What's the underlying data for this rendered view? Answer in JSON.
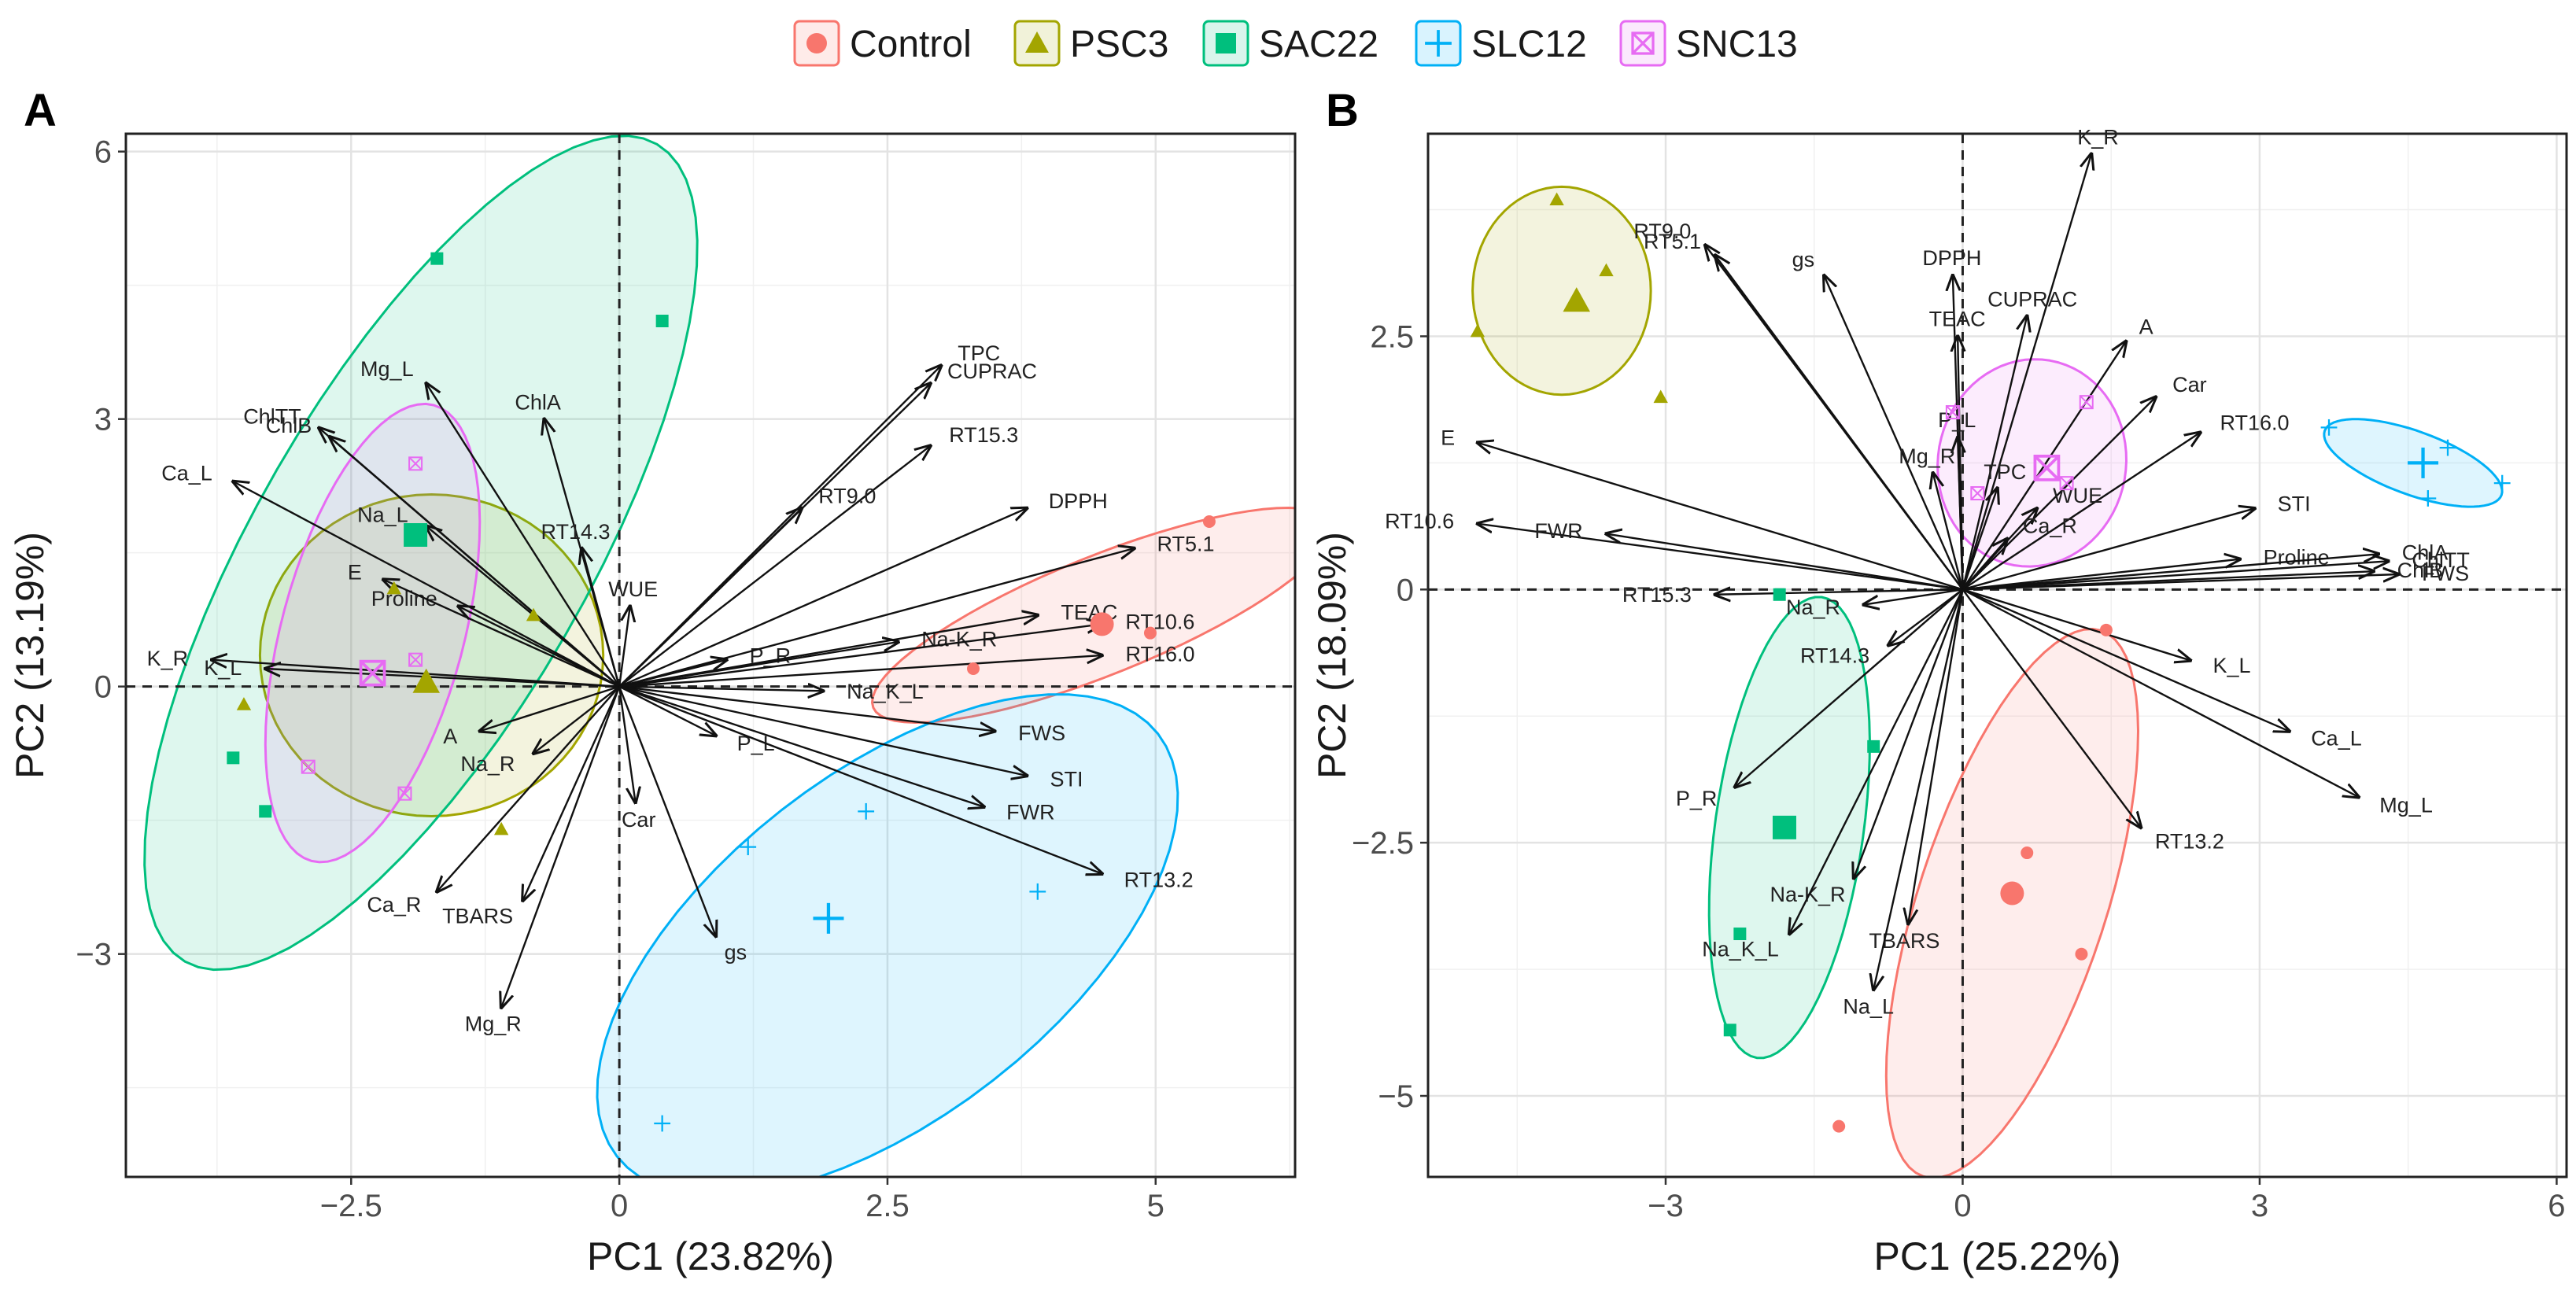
{
  "legend": {
    "items": [
      {
        "name": "Control",
        "color": "#F8766D",
        "marker": "circle"
      },
      {
        "name": "PSC3",
        "color": "#A3A500",
        "marker": "triangle"
      },
      {
        "name": "SAC22",
        "color": "#00BF7D",
        "marker": "square"
      },
      {
        "name": "SLC12",
        "color": "#00B0F6",
        "marker": "plus"
      },
      {
        "name": "SNC13",
        "color": "#E76BF3",
        "marker": "boxx"
      }
    ]
  },
  "chart_data": [
    {
      "type": "scatter",
      "panel": "A",
      "xlabel": "PC1 (23.82%)",
      "ylabel": "PC2 (13.19%)",
      "xlim": [
        -4.6,
        6.3
      ],
      "ylim": [
        -5.5,
        6.2
      ],
      "xticks": [
        -2.5,
        0,
        2.5,
        5
      ],
      "xtick_labels": [
        "−2.5",
        "0",
        "2.5",
        "5"
      ],
      "yticks": [
        -3,
        0,
        3,
        6
      ],
      "ytick_labels": [
        "−3",
        "0",
        "3",
        "6"
      ],
      "groups": [
        {
          "name": "Control",
          "centroid": [
            4.5,
            0.7
          ],
          "points": [
            [
              5.5,
              1.85
            ],
            [
              4.95,
              0.6
            ],
            [
              3.3,
              0.2
            ],
            [
              4.5,
              0.65
            ]
          ],
          "ellipse": {
            "center": [
              4.5,
              0.8
            ],
            "rx": 2.3,
            "ry": 0.55,
            "angle": 22
          }
        },
        {
          "name": "PSC3",
          "centroid": [
            -1.8,
            0.05
          ],
          "points": [
            [
              -2.1,
              1.1
            ],
            [
              -0.8,
              0.8
            ],
            [
              -3.5,
              -0.2
            ],
            [
              -1.1,
              -1.6
            ],
            [
              -1.8,
              0.05
            ]
          ],
          "ellipse": {
            "center": [
              -1.75,
              0.35
            ],
            "rx": 1.6,
            "ry": 1.5,
            "angle": 0
          }
        },
        {
          "name": "SAC22",
          "centroid": [
            -1.9,
            1.7
          ],
          "points": [
            [
              -1.7,
              4.8
            ],
            [
              0.4,
              4.1
            ],
            [
              -3.6,
              -0.8
            ],
            [
              -3.3,
              -1.4
            ],
            [
              -1.9,
              1.7
            ]
          ],
          "ellipse": {
            "center": [
              -1.85,
              1.5
            ],
            "rx": 4.4,
            "ry": 1.55,
            "angle": 60
          }
        },
        {
          "name": "SLC12",
          "centroid": [
            1.95,
            -2.6
          ],
          "points": [
            [
              1.2,
              -1.8
            ],
            [
              2.3,
              -1.4
            ],
            [
              3.9,
              -2.3
            ],
            [
              0.4,
              -4.9
            ],
            [
              1.95,
              -2.6
            ]
          ],
          "ellipse": {
            "center": [
              2.5,
              -2.9
            ],
            "rx": 3.2,
            "ry": 1.6,
            "angle": 38
          }
        },
        {
          "name": "SNC13",
          "centroid": [
            -2.3,
            0.15
          ],
          "points": [
            [
              -1.9,
              2.5
            ],
            [
              -2.9,
              -0.9
            ],
            [
              -2.0,
              -1.2
            ],
            [
              -1.9,
              0.3
            ],
            [
              -2.3,
              0.15
            ]
          ],
          "ellipse": {
            "center": [
              -2.3,
              0.6
            ],
            "rx": 2.2,
            "ry": 0.85,
            "angle": 75
          }
        }
      ],
      "loadings": [
        {
          "label": "Mg_L",
          "x": -1.8,
          "y": 3.4
        },
        {
          "label": "ChlTT",
          "x": -2.8,
          "y": 2.9
        },
        {
          "label": "ChlB",
          "x": -2.7,
          "y": 2.8
        },
        {
          "label": "Ca_L",
          "x": -3.6,
          "y": 2.3
        },
        {
          "label": "ChlA",
          "x": -0.7,
          "y": 3.0
        },
        {
          "label": "Na_L",
          "x": -1.8,
          "y": 1.8
        },
        {
          "label": "RT14.3",
          "x": -0.35,
          "y": 1.55
        },
        {
          "label": "WUE",
          "x": 0.1,
          "y": 0.9
        },
        {
          "label": "Proline",
          "x": -1.5,
          "y": 0.9
        },
        {
          "label": "E",
          "x": -2.2,
          "y": 1.2
        },
        {
          "label": "K_R",
          "x": -3.8,
          "y": 0.3
        },
        {
          "label": "K_L",
          "x": -3.3,
          "y": 0.2
        },
        {
          "label": "A",
          "x": -1.3,
          "y": -0.5
        },
        {
          "label": "Na_R",
          "x": -0.8,
          "y": -0.75
        },
        {
          "label": "Ca_R",
          "x": -1.7,
          "y": -2.3
        },
        {
          "label": "TBARS",
          "x": -0.9,
          "y": -2.4
        },
        {
          "label": "Mg_R",
          "x": -1.1,
          "y": -3.6
        },
        {
          "label": "Car",
          "x": 0.15,
          "y": -1.3
        },
        {
          "label": "gs",
          "x": 0.9,
          "y": -2.8
        },
        {
          "label": "P_L",
          "x": 0.9,
          "y": -0.55
        },
        {
          "label": "P_R",
          "x": 1.0,
          "y": 0.3
        },
        {
          "label": "Na-K_R",
          "x": 2.6,
          "y": 0.5
        },
        {
          "label": "Na_K_L",
          "x": 1.9,
          "y": -0.05
        },
        {
          "label": "TPC",
          "x": 3.0,
          "y": 3.6
        },
        {
          "label": "CUPRAC",
          "x": 2.9,
          "y": 3.4
        },
        {
          "label": "RT15.3",
          "x": 2.9,
          "y": 2.7
        },
        {
          "label": "RT9.0",
          "x": 1.7,
          "y": 2.0
        },
        {
          "label": "DPPH",
          "x": 3.8,
          "y": 2.0
        },
        {
          "label": "RT5.1",
          "x": 4.8,
          "y": 1.55
        },
        {
          "label": "TEAC",
          "x": 3.9,
          "y": 0.8
        },
        {
          "label": "RT10.6",
          "x": 4.5,
          "y": 0.7
        },
        {
          "label": "RT16.0",
          "x": 4.5,
          "y": 0.35
        },
        {
          "label": "FWS",
          "x": 3.5,
          "y": -0.5
        },
        {
          "label": "STI",
          "x": 3.8,
          "y": -1.0
        },
        {
          "label": "FWR",
          "x": 3.4,
          "y": -1.35
        },
        {
          "label": "RT13.2",
          "x": 4.5,
          "y": -2.1
        }
      ]
    },
    {
      "type": "scatter",
      "panel": "B",
      "xlabel": "PC1 (25.22%)",
      "ylabel": "PC2 (18.09%)",
      "xlim": [
        -5.4,
        6.1
      ],
      "ylim": [
        -5.8,
        4.5
      ],
      "xticks": [
        -3,
        0,
        3,
        6
      ],
      "xtick_labels": [
        "−3",
        "0",
        "3",
        "6"
      ],
      "yticks": [
        -5.0,
        -2.5,
        0.0,
        2.5
      ],
      "ytick_labels": [
        "−5",
        "−2.5",
        "0",
        "2.5"
      ],
      "groups": [
        {
          "name": "Control",
          "centroid": [
            0.5,
            -3.0
          ],
          "points": [
            [
              1.45,
              -0.4
            ],
            [
              0.65,
              -2.6
            ],
            [
              1.2,
              -3.6
            ],
            [
              -1.25,
              -5.3
            ],
            [
              0.5,
              -3.0
            ]
          ],
          "ellipse": {
            "center": [
              0.5,
              -3.1
            ],
            "rx": 2.9,
            "ry": 0.95,
            "angle": 72
          }
        },
        {
          "name": "PSC3",
          "centroid": [
            -3.9,
            2.85
          ],
          "points": [
            [
              -4.1,
              3.85
            ],
            [
              -3.6,
              3.15
            ],
            [
              -4.9,
              2.55
            ],
            [
              -3.05,
              1.9
            ],
            [
              -3.9,
              2.85
            ]
          ],
          "ellipse": {
            "center": [
              -4.05,
              2.95
            ],
            "rx": 1.05,
            "ry": 0.9,
            "angle": 90
          }
        },
        {
          "name": "SAC22",
          "centroid": [
            -1.8,
            -2.35
          ],
          "points": [
            [
              -1.85,
              -0.05
            ],
            [
              -0.9,
              -1.55
            ],
            [
              -2.25,
              -3.4
            ],
            [
              -2.35,
              -4.35
            ],
            [
              -1.8,
              -2.35
            ]
          ],
          "ellipse": {
            "center": [
              -1.75,
              -2.35
            ],
            "rx": 2.35,
            "ry": 0.75,
            "angle": 82
          }
        },
        {
          "name": "SLC12",
          "centroid": [
            4.65,
            1.25
          ],
          "points": [
            [
              3.7,
              1.6
            ],
            [
              4.9,
              1.4
            ],
            [
              5.45,
              1.05
            ],
            [
              4.7,
              0.9
            ],
            [
              4.65,
              1.25
            ]
          ],
          "ellipse": {
            "center": [
              4.55,
              1.25
            ],
            "rx": 0.95,
            "ry": 0.32,
            "angle": -20
          }
        },
        {
          "name": "SNC13",
          "centroid": [
            0.85,
            1.2
          ],
          "points": [
            [
              -0.1,
              1.75
            ],
            [
              1.25,
              1.85
            ],
            [
              0.15,
              0.95
            ],
            [
              1.05,
              1.05
            ],
            [
              0.85,
              1.2
            ]
          ],
          "ellipse": {
            "center": [
              0.7,
              1.25
            ],
            "rx": 1.05,
            "ry": 0.95,
            "angle": 80
          }
        }
      ],
      "loadings": [
        {
          "label": "K_R",
          "x": 1.3,
          "y": 4.3
        },
        {
          "label": "RT9.0",
          "x": -2.6,
          "y": 3.4
        },
        {
          "label": "gs",
          "x": -1.4,
          "y": 3.1
        },
        {
          "label": "RT5.1",
          "x": -2.5,
          "y": 3.3
        },
        {
          "label": "DPPH",
          "x": -0.1,
          "y": 3.1
        },
        {
          "label": "CUPRAC",
          "x": 0.65,
          "y": 2.7
        },
        {
          "label": "TEAC",
          "x": -0.05,
          "y": 2.5
        },
        {
          "label": "A",
          "x": 1.65,
          "y": 2.45
        },
        {
          "label": "Car",
          "x": 1.95,
          "y": 1.9
        },
        {
          "label": "RT16.0",
          "x": 2.4,
          "y": 1.55
        },
        {
          "label": "P_L",
          "x": -0.05,
          "y": 1.5
        },
        {
          "label": "Mg_R",
          "x": -0.3,
          "y": 1.15
        },
        {
          "label": "TPC",
          "x": 0.35,
          "y": 1.0
        },
        {
          "label": "WUE",
          "x": 0.75,
          "y": 0.8
        },
        {
          "label": "STI",
          "x": 2.95,
          "y": 0.8
        },
        {
          "label": "Ca_R",
          "x": 0.45,
          "y": 0.5
        },
        {
          "label": "Proline",
          "x": 2.8,
          "y": 0.3
        },
        {
          "label": "ChlA",
          "x": 4.2,
          "y": 0.35
        },
        {
          "label": "ChlTT",
          "x": 4.3,
          "y": 0.28
        },
        {
          "label": "ChlB",
          "x": 4.15,
          "y": 0.18
        },
        {
          "label": "FWS",
          "x": 4.4,
          "y": 0.15
        },
        {
          "label": "E",
          "x": -4.9,
          "y": 1.45
        },
        {
          "label": "RT10.6",
          "x": -4.9,
          "y": 0.65
        },
        {
          "label": "FWR",
          "x": -3.6,
          "y": 0.55
        },
        {
          "label": "RT15.3",
          "x": -2.5,
          "y": -0.05
        },
        {
          "label": "Na_R",
          "x": -1.0,
          "y": -0.15
        },
        {
          "label": "RT14.3",
          "x": -0.75,
          "y": -0.55
        },
        {
          "label": "K_L",
          "x": 2.3,
          "y": -0.7
        },
        {
          "label": "Ca_L",
          "x": 3.3,
          "y": -1.4
        },
        {
          "label": "Mg_L",
          "x": 4.0,
          "y": -2.05
        },
        {
          "label": "RT13.2",
          "x": 1.8,
          "y": -2.35
        },
        {
          "label": "P_R",
          "x": -2.3,
          "y": -1.95
        },
        {
          "label": "Na-K_R",
          "x": -1.1,
          "y": -2.85
        },
        {
          "label": "Na_K_L",
          "x": -1.75,
          "y": -3.4
        },
        {
          "label": "TBARS",
          "x": -0.55,
          "y": -3.3
        },
        {
          "label": "Na_L",
          "x": -0.9,
          "y": -3.95
        }
      ]
    }
  ]
}
